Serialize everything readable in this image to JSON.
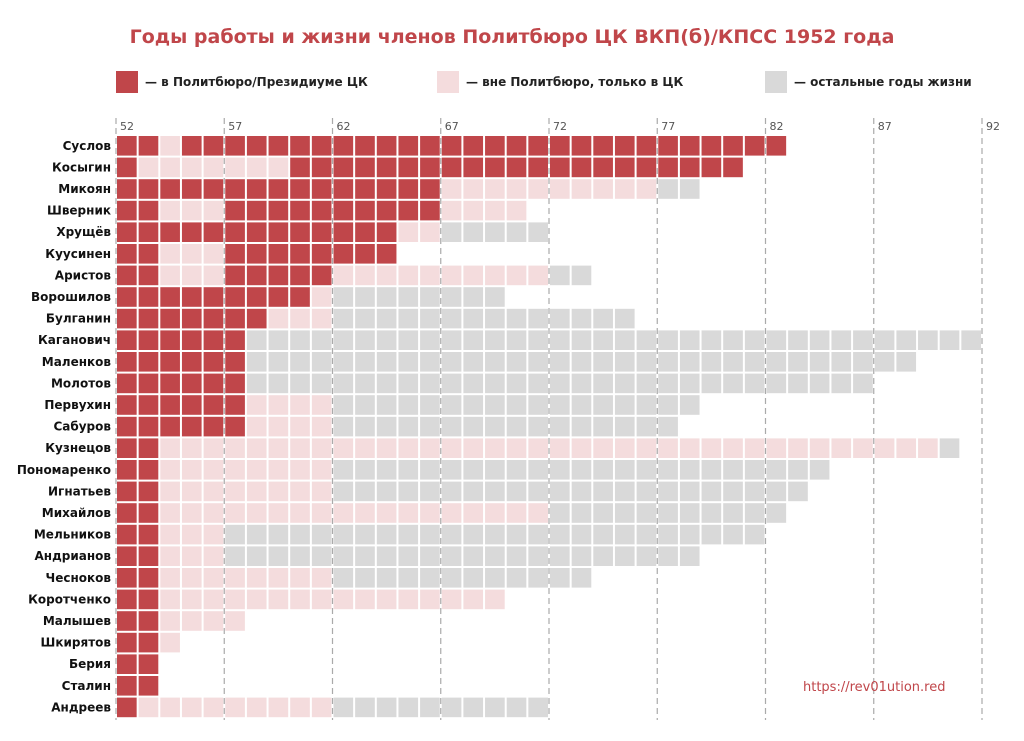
{
  "colors": {
    "politburo": "#c0464a",
    "ck_only": "#f4dcdd",
    "other_life": "#d9d9d9",
    "title": "#c0464a",
    "grid": "#aaaaaa",
    "url": "#c0464a"
  },
  "legend": [
    {
      "key": "politburo",
      "label": "— в Политбюро/Президиуме ЦК"
    },
    {
      "key": "ck_only",
      "label": "— вне Политбюро, только в ЦК"
    },
    {
      "key": "other_life",
      "label": "— остальные годы жизни"
    }
  ],
  "source_url": "https://rev01ution.red",
  "chart_data": {
    "type": "heatmap",
    "title": "Годы работы и жизни членов Политбюро ЦК ВКП(б)/КПСС 1952 года",
    "x_ticks": [
      "52",
      "57",
      "62",
      "67",
      "72",
      "77",
      "82",
      "87",
      "92"
    ],
    "x_tick_years": [
      1952,
      1957,
      1962,
      1967,
      1972,
      1977,
      1982,
      1987,
      1992
    ],
    "xlim": [
      1952,
      1992
    ],
    "grid": "dashed vertical lines at ticks",
    "legend_position": "top",
    "rows": [
      {
        "name": "Суслов",
        "segments": [
          [
            "P",
            1952,
            1953
          ],
          [
            "C",
            1954,
            1954
          ],
          [
            "P",
            1955,
            1982
          ]
        ]
      },
      {
        "name": "Косыгин",
        "segments": [
          [
            "P",
            1952,
            1952
          ],
          [
            "C",
            1953,
            1959
          ],
          [
            "P",
            1960,
            1980
          ]
        ]
      },
      {
        "name": "Микоян",
        "segments": [
          [
            "P",
            1952,
            1966
          ],
          [
            "C",
            1967,
            1976
          ],
          [
            "O",
            1977,
            1978
          ]
        ]
      },
      {
        "name": "Шверник",
        "segments": [
          [
            "P",
            1952,
            1953
          ],
          [
            "C",
            1954,
            1956
          ],
          [
            "P",
            1957,
            1966
          ],
          [
            "C",
            1967,
            1970
          ]
        ]
      },
      {
        "name": "Хрущёв",
        "segments": [
          [
            "P",
            1952,
            1964
          ],
          [
            "C",
            1965,
            1966
          ],
          [
            "O",
            1967,
            1971
          ]
        ]
      },
      {
        "name": "Куусинен",
        "segments": [
          [
            "P",
            1952,
            1953
          ],
          [
            "C",
            1954,
            1956
          ],
          [
            "P",
            1957,
            1964
          ]
        ]
      },
      {
        "name": "Аристов",
        "segments": [
          [
            "P",
            1952,
            1953
          ],
          [
            "C",
            1954,
            1956
          ],
          [
            "P",
            1957,
            1961
          ],
          [
            "C",
            1962,
            1971
          ],
          [
            "O",
            1972,
            1973
          ]
        ]
      },
      {
        "name": "Ворошилов",
        "segments": [
          [
            "P",
            1952,
            1960
          ],
          [
            "C",
            1961,
            1961
          ],
          [
            "O",
            1962,
            1969
          ]
        ]
      },
      {
        "name": "Булганин",
        "segments": [
          [
            "P",
            1952,
            1958
          ],
          [
            "C",
            1959,
            1961
          ],
          [
            "O",
            1962,
            1975
          ]
        ]
      },
      {
        "name": "Каганович",
        "segments": [
          [
            "P",
            1952,
            1957
          ],
          [
            "O",
            1958,
            1991
          ]
        ]
      },
      {
        "name": "Маленков",
        "segments": [
          [
            "P",
            1952,
            1957
          ],
          [
            "O",
            1958,
            1988
          ]
        ]
      },
      {
        "name": "Молотов",
        "segments": [
          [
            "P",
            1952,
            1957
          ],
          [
            "O",
            1958,
            1986
          ]
        ]
      },
      {
        "name": "Первухин",
        "segments": [
          [
            "P",
            1952,
            1957
          ],
          [
            "C",
            1958,
            1961
          ],
          [
            "O",
            1962,
            1978
          ]
        ]
      },
      {
        "name": "Сабуров",
        "segments": [
          [
            "P",
            1952,
            1957
          ],
          [
            "C",
            1958,
            1961
          ],
          [
            "O",
            1962,
            1977
          ]
        ]
      },
      {
        "name": "Кузнецов",
        "segments": [
          [
            "P",
            1952,
            1953
          ],
          [
            "C",
            1954,
            1989
          ],
          [
            "O",
            1990,
            1990
          ]
        ]
      },
      {
        "name": "Пономаренко",
        "segments": [
          [
            "P",
            1952,
            1953
          ],
          [
            "C",
            1954,
            1961
          ],
          [
            "O",
            1962,
            1984
          ]
        ]
      },
      {
        "name": "Игнатьев",
        "segments": [
          [
            "P",
            1952,
            1953
          ],
          [
            "C",
            1954,
            1961
          ],
          [
            "O",
            1962,
            1983
          ]
        ]
      },
      {
        "name": "Михайлов",
        "segments": [
          [
            "P",
            1952,
            1953
          ],
          [
            "C",
            1954,
            1971
          ],
          [
            "O",
            1972,
            1982
          ]
        ]
      },
      {
        "name": "Мельников",
        "segments": [
          [
            "P",
            1952,
            1953
          ],
          [
            "C",
            1954,
            1956
          ],
          [
            "O",
            1957,
            1981
          ]
        ]
      },
      {
        "name": "Андрианов",
        "segments": [
          [
            "P",
            1952,
            1953
          ],
          [
            "C",
            1954,
            1956
          ],
          [
            "O",
            1957,
            1978
          ]
        ]
      },
      {
        "name": "Чесноков",
        "segments": [
          [
            "P",
            1952,
            1953
          ],
          [
            "C",
            1954,
            1961
          ],
          [
            "O",
            1962,
            1973
          ]
        ]
      },
      {
        "name": "Коротченко",
        "segments": [
          [
            "P",
            1952,
            1953
          ],
          [
            "C",
            1954,
            1969
          ]
        ]
      },
      {
        "name": "Малышев",
        "segments": [
          [
            "P",
            1952,
            1953
          ],
          [
            "C",
            1954,
            1957
          ]
        ]
      },
      {
        "name": "Шкирятов",
        "segments": [
          [
            "P",
            1952,
            1953
          ],
          [
            "C",
            1954,
            1954
          ]
        ]
      },
      {
        "name": "Берия",
        "segments": [
          [
            "P",
            1952,
            1953
          ]
        ]
      },
      {
        "name": "Сталин",
        "segments": [
          [
            "P",
            1952,
            1953
          ]
        ]
      },
      {
        "name": "Андреев",
        "segments": [
          [
            "P",
            1952,
            1952
          ],
          [
            "C",
            1953,
            1961
          ],
          [
            "O",
            1962,
            1971
          ]
        ]
      }
    ]
  }
}
